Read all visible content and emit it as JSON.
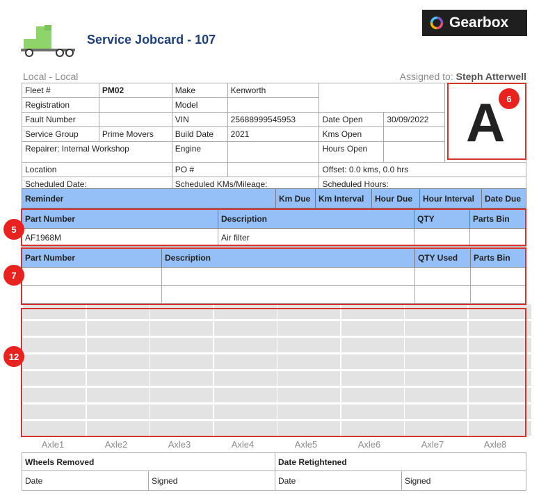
{
  "header": {
    "title": "Service Jobcard - 107",
    "brand": "Gearbox",
    "location": "Local - Local",
    "assigned_label": "Assigned to:",
    "assigned_name": "Steph Atterwell"
  },
  "info": {
    "fleet_label": "Fleet #",
    "fleet_value": "PM02",
    "make_label": "Make",
    "make_value": "Kenworth",
    "registration_label": "Registration",
    "model_label": "Model",
    "fault_label": "Fault Number",
    "vin_label": "VIN",
    "vin_value": "25688999545953",
    "date_open_label": "Date Open",
    "date_open_value": "30/09/2022",
    "service_group_label": "Service Group",
    "service_group_value": "Prime Movers",
    "build_date_label": "Build Date",
    "build_date_value": "2021",
    "kms_open_label": "Kms Open",
    "repairer": "Repairer: Internal Workshop",
    "engine_label": "Engine",
    "hours_open_label": "Hours Open",
    "location_label": "Location",
    "po_label": "PO #",
    "offset": "Offset: 0.0 kms, 0.0 hrs",
    "scheduled_date": "Scheduled Date:",
    "scheduled_kms": "Scheduled KMs/Mileage:",
    "scheduled_hours": "Scheduled Hours:",
    "grade": "A"
  },
  "reminder_headers": [
    "Reminder",
    "Km Due",
    "Km Interval",
    "Hour Due",
    "Hour Interval",
    "Date Due"
  ],
  "parts_headers": [
    "Part Number",
    "Description",
    "QTY",
    "Parts Bin"
  ],
  "parts_rows": [
    {
      "part": "AF1968M",
      "desc": "Air filter",
      "qty": "",
      "bin": ""
    }
  ],
  "used_headers": [
    "Part Number",
    "Description",
    "QTY Used",
    "Parts Bin"
  ],
  "axles": [
    "Axle1",
    "Axle2",
    "Axle3",
    "Axle4",
    "Axle5",
    "Axle6",
    "Axle7",
    "Axle8"
  ],
  "wheels": {
    "removed_label": "Wheels Removed",
    "retightened_label": "Date Retightened",
    "date_label": "Date",
    "signed_label": "Signed"
  },
  "markers": {
    "m5": "5",
    "m6": "6",
    "m7": "7",
    "m12": "12"
  },
  "colors": {
    "header_blue": "#94c0f7",
    "title_blue": "#1f3f7a",
    "marker_red": "#e8231f",
    "truck_green": "#8fd36b"
  }
}
